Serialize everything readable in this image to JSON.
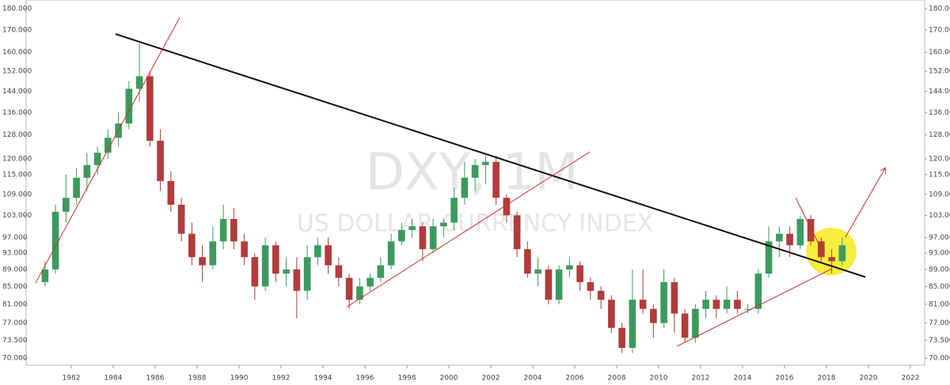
{
  "chart_data": {
    "type": "candlestick",
    "watermark_title": "DXY, 1M",
    "watermark_subtitle": "US DOLLAR CURRENCY INDEX",
    "log_scale": true,
    "ylim": [
      68.7,
      184.3
    ],
    "yticks": [
      {
        "value": 70,
        "label": "70.000"
      },
      {
        "value": 73.5,
        "label": "73.500"
      },
      {
        "value": 77,
        "label": "77.000"
      },
      {
        "value": 81,
        "label": "81.000"
      },
      {
        "value": 85,
        "label": "85.000"
      },
      {
        "value": 89,
        "label": "89.000"
      },
      {
        "value": 93,
        "label": "93.000"
      },
      {
        "value": 97,
        "label": "97.000"
      },
      {
        "value": 103,
        "label": "103.000"
      },
      {
        "value": 109,
        "label": "109.000"
      },
      {
        "value": 115,
        "label": "115.000"
      },
      {
        "value": 120,
        "label": "120.000"
      },
      {
        "value": 128,
        "label": "128.000"
      },
      {
        "value": 136,
        "label": "136.000"
      },
      {
        "value": 144,
        "label": "144.000"
      },
      {
        "value": 152,
        "label": "152.000"
      },
      {
        "value": 160,
        "label": "160.000"
      },
      {
        "value": 170,
        "label": "170.000"
      },
      {
        "value": 180,
        "label": "180.000"
      }
    ],
    "xlim": [
      1979.85,
      2022.68
    ],
    "xticks": [
      1982,
      1984,
      1986,
      1988,
      1990,
      1992,
      1994,
      1996,
      1998,
      2000,
      2002,
      2004,
      2006,
      2008,
      2010,
      2012,
      2014,
      2016,
      2018,
      2020,
      2022
    ],
    "up_color": "#3c9a5f",
    "down_color": "#b23b3b",
    "x": [
      1980.75,
      1981.25,
      1981.75,
      1982.25,
      1982.75,
      1983.25,
      1983.75,
      1984.25,
      1984.75,
      1985.25,
      1985.75,
      1986.25,
      1986.75,
      1987.25,
      1987.75,
      1988.25,
      1988.75,
      1989.25,
      1989.75,
      1990.25,
      1990.75,
      1991.25,
      1991.75,
      1992.25,
      1992.75,
      1993.25,
      1993.75,
      1994.25,
      1994.75,
      1995.25,
      1995.75,
      1996.25,
      1996.75,
      1997.25,
      1997.75,
      1998.25,
      1998.75,
      1999.25,
      1999.75,
      2000.25,
      2000.75,
      2001.25,
      2001.75,
      2002.25,
      2002.75,
      2003.25,
      2003.75,
      2004.25,
      2004.75,
      2005.25,
      2005.75,
      2006.25,
      2006.75,
      2007.25,
      2007.75,
      2008.25,
      2008.75,
      2009.25,
      2009.75,
      2010.25,
      2010.75,
      2011.25,
      2011.75,
      2012.25,
      2012.75,
      2013.25,
      2013.75,
      2014.25,
      2014.75,
      2015.25,
      2015.75,
      2016.25,
      2016.75,
      2017.25,
      2017.75,
      2018.25,
      2018.75
    ],
    "open": [
      86,
      89,
      104,
      108,
      114,
      118,
      122,
      127,
      132,
      145,
      150,
      126,
      113,
      106,
      98,
      92,
      90,
      96,
      102,
      96,
      92,
      85,
      95,
      88,
      89,
      84,
      92,
      95,
      90,
      87,
      82,
      85,
      87,
      90,
      96,
      99,
      100,
      94,
      100,
      101,
      108,
      114,
      118,
      119,
      108,
      103,
      94,
      88,
      89,
      82,
      89,
      90,
      86,
      84,
      82,
      76,
      72,
      82,
      80,
      77,
      86,
      79,
      74,
      80,
      82,
      80,
      82,
      80,
      80,
      88,
      96,
      98,
      95,
      102,
      96,
      92,
      91
    ],
    "high": [
      91,
      106,
      115,
      117,
      122,
      124,
      130,
      136,
      148,
      164,
      152,
      130,
      116,
      108,
      101,
      95,
      100,
      106,
      105,
      98,
      93,
      97,
      96,
      92,
      92,
      95,
      97,
      97,
      92,
      88,
      87,
      88,
      92,
      98,
      101,
      102,
      101,
      102,
      102,
      111,
      119,
      120,
      121,
      121,
      109,
      104,
      96,
      92,
      90,
      90,
      92,
      91,
      87,
      85,
      83,
      77,
      89,
      89,
      81,
      89,
      87,
      80,
      81,
      84,
      83,
      85,
      84,
      81,
      89,
      100,
      100,
      100,
      103,
      103,
      97,
      94,
      97
    ],
    "low": [
      85,
      88,
      101,
      106,
      110,
      115,
      120,
      124,
      130,
      140,
      124,
      110,
      104,
      96,
      90,
      86,
      89,
      94,
      94,
      90,
      82,
      84,
      86,
      85,
      78,
      82,
      90,
      88,
      85,
      80,
      81,
      84,
      86,
      89,
      95,
      97,
      91,
      93,
      97,
      99,
      106,
      110,
      112,
      106,
      101,
      92,
      87,
      85,
      81,
      81,
      87,
      84,
      82,
      80,
      75,
      71,
      71,
      79,
      74,
      76,
      75,
      73,
      73,
      78,
      78,
      79,
      79,
      79,
      79,
      87,
      92,
      92,
      94,
      95,
      91,
      88,
      90
    ],
    "close": [
      89,
      104,
      108,
      114,
      118,
      122,
      127,
      132,
      145,
      150,
      126,
      113,
      106,
      98,
      92,
      90,
      96,
      102,
      96,
      92,
      85,
      95,
      88,
      89,
      84,
      92,
      95,
      90,
      87,
      82,
      85,
      87,
      90,
      96,
      99,
      100,
      94,
      100,
      101,
      108,
      114,
      118,
      119,
      108,
      103,
      94,
      88,
      89,
      82,
      89,
      90,
      86,
      84,
      82,
      76,
      72,
      82,
      80,
      77,
      86,
      79,
      74,
      80,
      82,
      80,
      82,
      80,
      80,
      88,
      96,
      98,
      95,
      102,
      96,
      92,
      91,
      95
    ],
    "trendlines": [
      {
        "x": [
          1984.11,
          2019.85
        ],
        "y": [
          168.1,
          87.2
        ],
        "color": "#111111"
      },
      {
        "x": [
          1980.3,
          1987.17
        ],
        "y": [
          85.8,
          175.8
        ],
        "color": "#d0302a"
      },
      {
        "x": [
          1995.13,
          2006.72
        ],
        "y": [
          80.4,
          122.3
        ],
        "color": "#d0302a"
      },
      {
        "x": [
          2010.87,
          2018.23
        ],
        "y": [
          72.3,
          89.1
        ],
        "color": "#d0302a"
      },
      {
        "x": [
          2016.53,
          2017.85
        ],
        "y": [
          108,
          93
        ],
        "color": "#d0302a"
      },
      {
        "x": [
          2018.9,
          2020.79
        ],
        "y": [
          97.1,
          116.9
        ],
        "color": "#d0302a",
        "arrow": true
      }
    ],
    "highlight": {
      "x": 2018.23,
      "y": 93.4,
      "color": "#f5ea1c"
    }
  }
}
